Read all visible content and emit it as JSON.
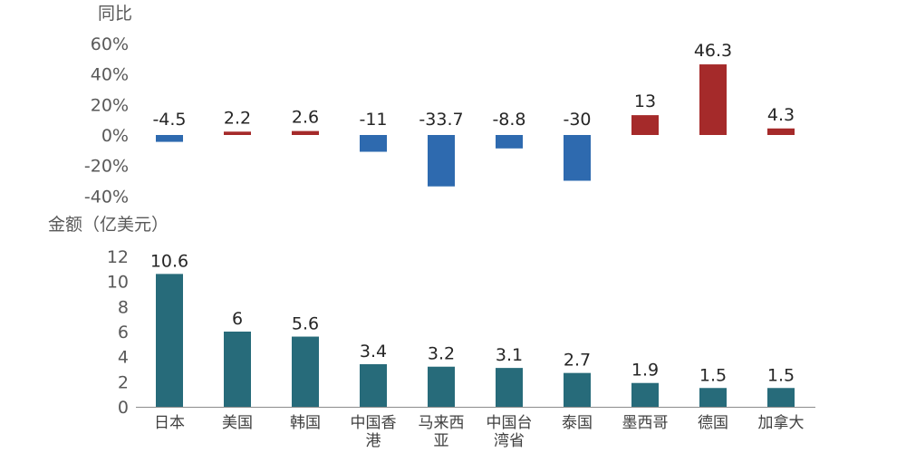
{
  "chart_data": [
    {
      "type": "bar",
      "ylabel": "同比",
      "categories": [
        "日本",
        "美国",
        "韩国",
        "中国香港",
        "马来西亚",
        "中国台湾省",
        "泰国",
        "墨西哥",
        "德国",
        "加拿大"
      ],
      "values": [
        -4.5,
        2.2,
        2.6,
        -11,
        -33.7,
        -8.8,
        -30,
        13,
        46.3,
        4.3
      ],
      "ylim": [
        -40,
        60
      ],
      "yticks": [
        "60%",
        "40%",
        "20%",
        "0%",
        "-20%",
        "-40%"
      ],
      "ytick_values": [
        60,
        40,
        20,
        0,
        -20,
        -40
      ],
      "colors": {
        "positive": "#a52a2a",
        "negative": "#2e6aaf"
      },
      "grid": false,
      "legend": "none"
    },
    {
      "type": "bar",
      "ylabel": "金额（亿美元）",
      "categories": [
        "日本",
        "美国",
        "韩国",
        "中国香港",
        "马来西亚",
        "中国台湾省",
        "泰国",
        "墨西哥",
        "德国",
        "加拿大"
      ],
      "category_labels": [
        [
          "日本"
        ],
        [
          "美国"
        ],
        [
          "韩国"
        ],
        [
          "中国香",
          "港"
        ],
        [
          "马来西",
          "亚"
        ],
        [
          "中国台",
          "湾省"
        ],
        [
          "泰国"
        ],
        [
          "墨西哥"
        ],
        [
          "德国"
        ],
        [
          "加拿大"
        ]
      ],
      "values": [
        10.6,
        6,
        5.6,
        3.4,
        3.2,
        3.1,
        2.7,
        1.9,
        1.5,
        1.5
      ],
      "ylim": [
        0,
        12
      ],
      "yticks": [
        "12",
        "10",
        "8",
        "6",
        "4",
        "2",
        "0"
      ],
      "ytick_values": [
        12,
        10,
        8,
        6,
        4,
        2,
        0
      ],
      "colors": {
        "bar": "#276b7a"
      },
      "grid": false,
      "legend": "none"
    }
  ]
}
